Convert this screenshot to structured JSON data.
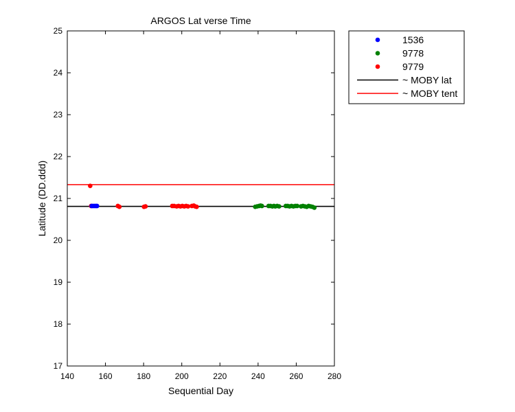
{
  "chart_data": {
    "type": "scatter",
    "title": "ARGOS Lat verse Time",
    "xlabel": "Sequential Day",
    "ylabel": "Latitude (DD.ddd)",
    "xlim": [
      140,
      280
    ],
    "ylim": [
      17,
      25
    ],
    "xticks": [
      140,
      160,
      180,
      200,
      220,
      240,
      260,
      280
    ],
    "yticks": [
      17,
      18,
      19,
      20,
      21,
      22,
      23,
      24,
      25
    ],
    "grid": false,
    "legend_position": "outside-top-right",
    "series": [
      {
        "name": "1536",
        "kind": "points",
        "color": "#0000ff",
        "points": [
          [
            152.8,
            20.82
          ],
          [
            153.5,
            20.82
          ],
          [
            154.3,
            20.82
          ],
          [
            155.0,
            20.82
          ],
          [
            155.6,
            20.82
          ]
        ]
      },
      {
        "name": "9778",
        "kind": "points",
        "color": "#008000",
        "points": [
          [
            238.5,
            20.8
          ],
          [
            239.5,
            20.81
          ],
          [
            240.5,
            20.82
          ],
          [
            241.3,
            20.83
          ],
          [
            242.0,
            20.82
          ],
          [
            245.5,
            20.82
          ],
          [
            246.5,
            20.82
          ],
          [
            247.5,
            20.81
          ],
          [
            248.3,
            20.82
          ],
          [
            249.0,
            20.81
          ],
          [
            250.0,
            20.82
          ],
          [
            251.0,
            20.81
          ],
          [
            254.5,
            20.82
          ],
          [
            255.5,
            20.82
          ],
          [
            256.5,
            20.81
          ],
          [
            257.5,
            20.82
          ],
          [
            258.5,
            20.81
          ],
          [
            259.5,
            20.82
          ],
          [
            260.5,
            20.82
          ],
          [
            262.5,
            20.81
          ],
          [
            263.5,
            20.82
          ],
          [
            264.5,
            20.81
          ],
          [
            265.5,
            20.8
          ],
          [
            266.5,
            20.82
          ],
          [
            267.5,
            20.81
          ],
          [
            268.5,
            20.8
          ],
          [
            269.5,
            20.78
          ]
        ]
      },
      {
        "name": "9779",
        "kind": "points",
        "color": "#ff0000",
        "points": [
          [
            152.0,
            21.3
          ],
          [
            152.5,
            20.82
          ],
          [
            166.5,
            20.82
          ],
          [
            167.3,
            20.8
          ],
          [
            180.2,
            20.8
          ],
          [
            181.0,
            20.81
          ],
          [
            195.0,
            20.82
          ],
          [
            196.0,
            20.82
          ],
          [
            197.3,
            20.81
          ],
          [
            198.3,
            20.82
          ],
          [
            199.3,
            20.81
          ],
          [
            200.3,
            20.82
          ],
          [
            201.3,
            20.81
          ],
          [
            202.3,
            20.82
          ],
          [
            203.3,
            20.81
          ],
          [
            205.3,
            20.82
          ],
          [
            206.3,
            20.83
          ],
          [
            207.0,
            20.81
          ],
          [
            207.8,
            20.8
          ]
        ]
      },
      {
        "name": "~ MOBY lat",
        "kind": "hline",
        "color": "#000000",
        "y": 20.81
      },
      {
        "name": "~ MOBY tent",
        "kind": "hline",
        "color": "#ff0000",
        "y": 21.33
      }
    ]
  }
}
